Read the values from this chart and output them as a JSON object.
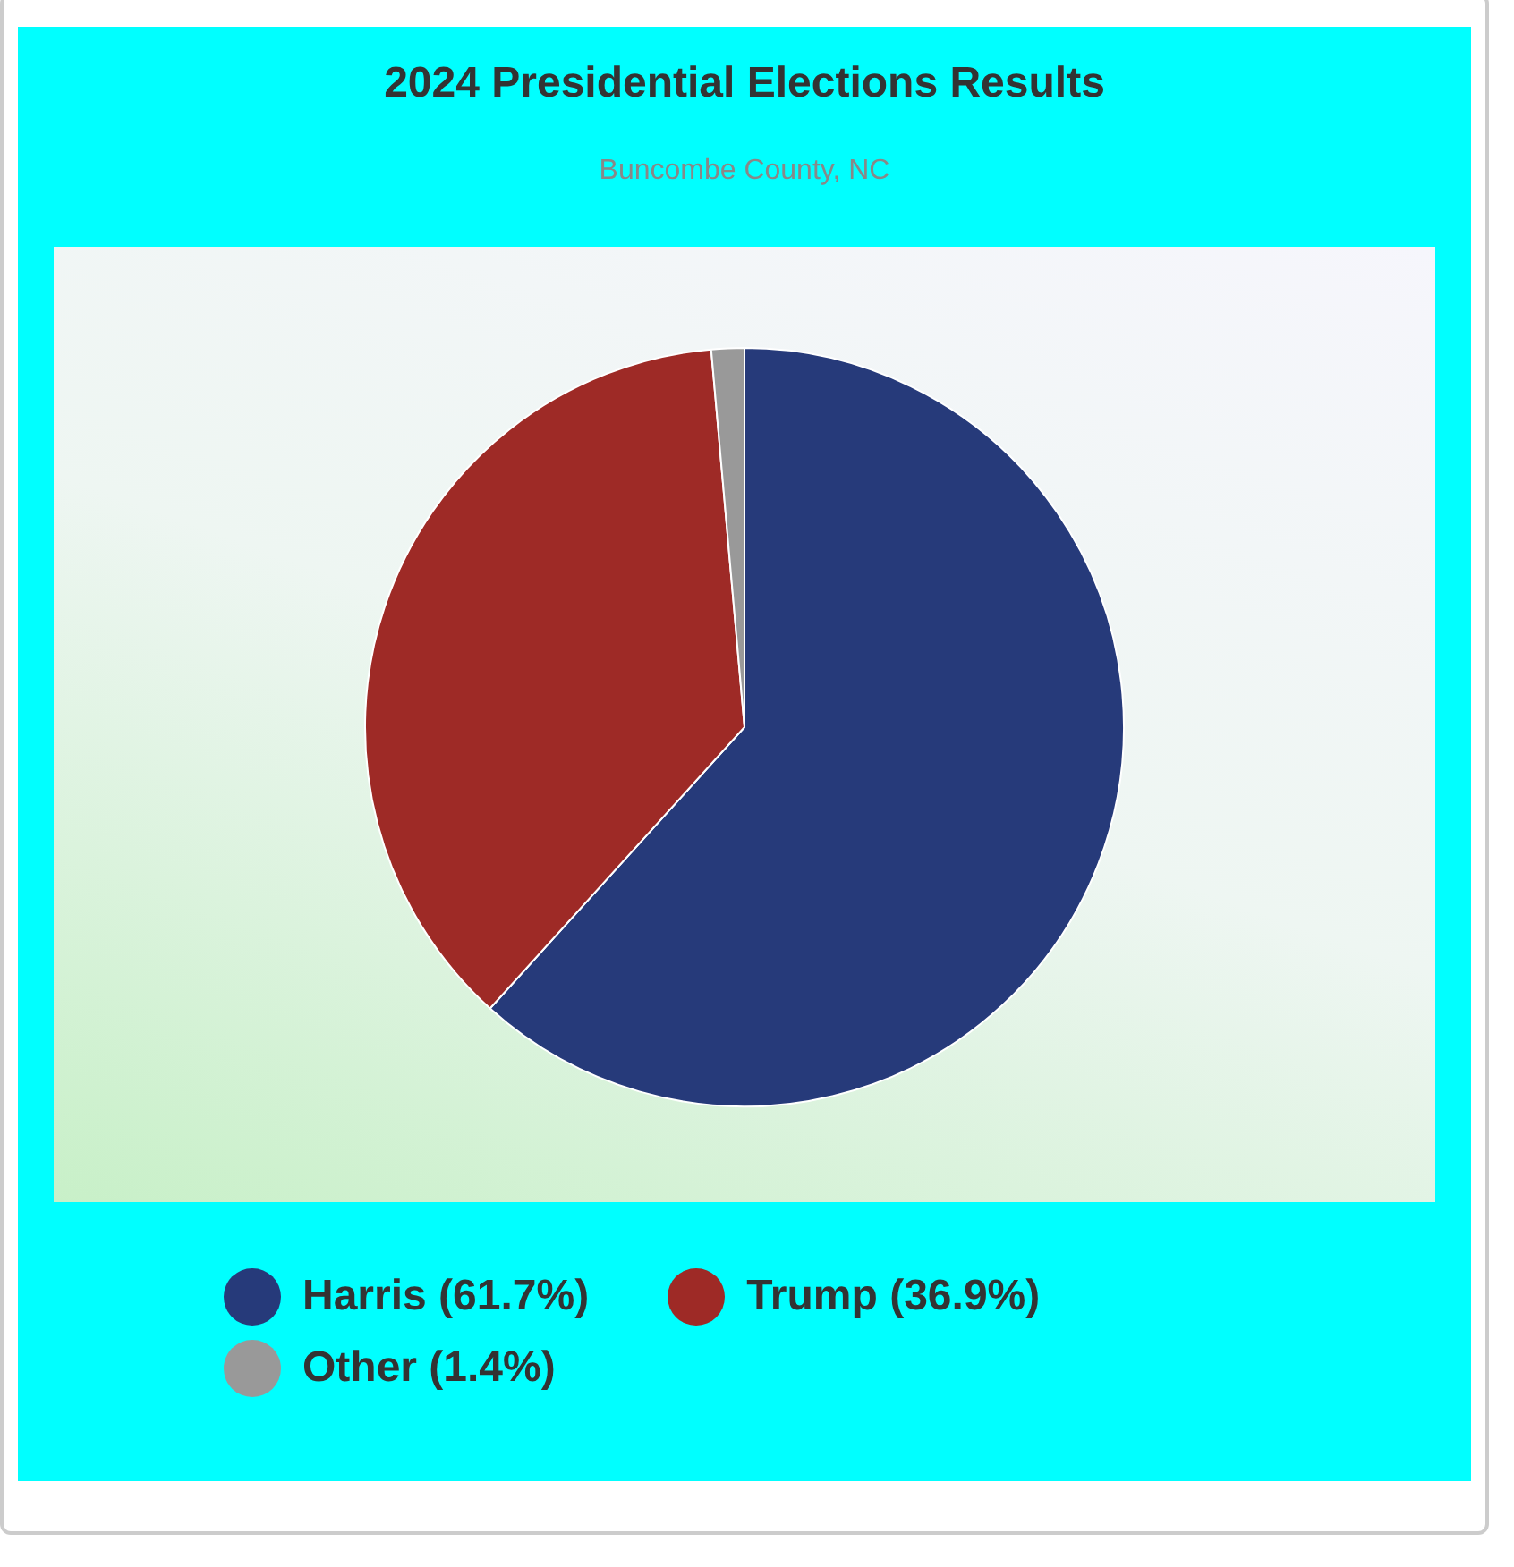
{
  "chart_data": {
    "type": "pie",
    "title": "2024 Presidential Elections Results",
    "subtitle": "Buncombe County, NC",
    "categories": [
      "Harris (61.7%)",
      "Trump (36.9%)",
      "Other (1.4%)"
    ],
    "values": [
      61.7,
      36.9,
      1.4
    ],
    "colors": [
      "#263a7a",
      "#9e2a26",
      "#999999"
    ],
    "legend": "bottom"
  }
}
